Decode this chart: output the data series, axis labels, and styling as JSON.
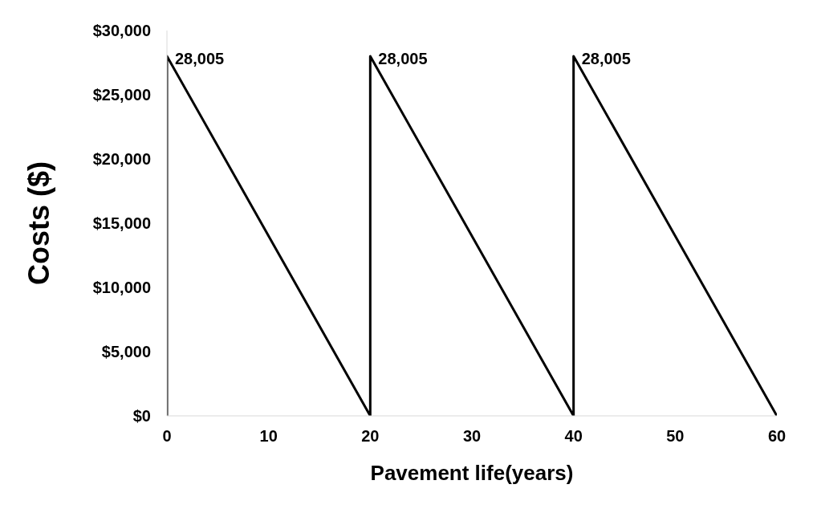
{
  "chart_data": {
    "type": "line",
    "xlabel": "Pavement life(years)",
    "ylabel": "Costs ($)",
    "x": [
      0,
      0,
      20,
      20,
      40,
      40,
      60
    ],
    "series": [
      {
        "color": "#000000",
        "values": [
          0,
          28005,
          0,
          28005,
          0,
          28005,
          0
        ]
      }
    ],
    "xlim": [
      0,
      60
    ],
    "xticks": [
      0,
      10,
      20,
      30,
      40,
      50,
      60
    ],
    "ylim": [
      0,
      30000
    ],
    "yticks": [
      {
        "value": 0,
        "label": "$0"
      },
      {
        "value": 5000,
        "label": "$5,000"
      },
      {
        "value": 10000,
        "label": "$10,000"
      },
      {
        "value": 15000,
        "label": "$15,000"
      },
      {
        "value": 20000,
        "label": "$20,000"
      },
      {
        "value": 25000,
        "label": "$25,000"
      },
      {
        "value": 30000,
        "label": "$30,000"
      }
    ],
    "grid": false,
    "legend": false,
    "marker": "none",
    "line_style": "solid",
    "annotations": [
      {
        "text": "28,005",
        "x": 0,
        "y": 28005
      },
      {
        "text": "28,005",
        "x": 20,
        "y": 28005
      },
      {
        "text": "28,005",
        "x": 40,
        "y": 28005
      }
    ]
  }
}
